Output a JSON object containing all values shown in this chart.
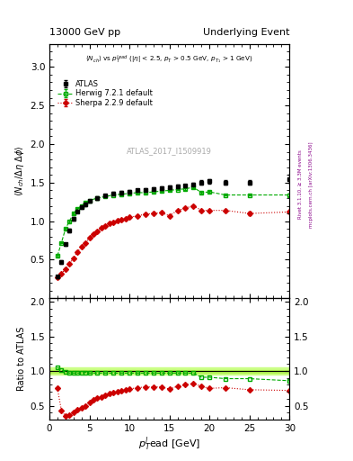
{
  "title_left": "13000 GeV pp",
  "title_right": "Underlying Event",
  "plot_label": "ATLAS_2017_I1509919",
  "right_label1": "Rivet 3.1.10, ≥ 3.3M events",
  "right_label2": "mcplots.cern.ch [arXiv:1306.3436]",
  "atlas_x": [
    1.0,
    1.5,
    2.0,
    2.5,
    3.0,
    3.5,
    4.0,
    4.5,
    5.0,
    6.0,
    7.0,
    8.0,
    9.0,
    10.0,
    11.0,
    12.0,
    13.0,
    14.0,
    15.0,
    16.0,
    17.0,
    18.0,
    19.0,
    20.0,
    22.0,
    25.0,
    30.0
  ],
  "atlas_y": [
    0.28,
    0.47,
    0.7,
    0.88,
    1.03,
    1.13,
    1.18,
    1.22,
    1.26,
    1.3,
    1.33,
    1.36,
    1.37,
    1.38,
    1.4,
    1.41,
    1.42,
    1.43,
    1.44,
    1.45,
    1.46,
    1.48,
    1.5,
    1.52,
    1.5,
    1.5,
    1.55
  ],
  "atlas_yerr": [
    0.02,
    0.02,
    0.02,
    0.02,
    0.02,
    0.02,
    0.02,
    0.02,
    0.02,
    0.02,
    0.02,
    0.02,
    0.02,
    0.02,
    0.02,
    0.02,
    0.02,
    0.02,
    0.02,
    0.02,
    0.02,
    0.02,
    0.03,
    0.03,
    0.03,
    0.03,
    0.05
  ],
  "herwig_x": [
    1.0,
    1.5,
    2.0,
    2.5,
    3.0,
    3.5,
    4.0,
    4.5,
    5.0,
    6.0,
    7.0,
    8.0,
    9.0,
    10.0,
    11.0,
    12.0,
    13.0,
    14.0,
    15.0,
    16.0,
    17.0,
    18.0,
    19.0,
    20.0,
    22.0,
    25.0,
    30.0
  ],
  "herwig_y": [
    0.55,
    0.72,
    0.9,
    1.0,
    1.1,
    1.16,
    1.2,
    1.24,
    1.27,
    1.3,
    1.32,
    1.34,
    1.35,
    1.36,
    1.37,
    1.37,
    1.38,
    1.39,
    1.4,
    1.41,
    1.42,
    1.44,
    1.37,
    1.38,
    1.34,
    1.34,
    1.34
  ],
  "herwig_yerr": [
    0.01,
    0.01,
    0.01,
    0.01,
    0.01,
    0.01,
    0.01,
    0.01,
    0.01,
    0.01,
    0.01,
    0.01,
    0.01,
    0.01,
    0.01,
    0.01,
    0.01,
    0.01,
    0.01,
    0.01,
    0.01,
    0.01,
    0.01,
    0.01,
    0.01,
    0.01,
    0.02
  ],
  "sherpa_x": [
    1.0,
    1.5,
    2.0,
    2.5,
    3.0,
    3.5,
    4.0,
    4.5,
    5.0,
    5.5,
    6.0,
    6.5,
    7.0,
    7.5,
    8.0,
    8.5,
    9.0,
    9.5,
    10.0,
    11.0,
    12.0,
    13.0,
    14.0,
    15.0,
    16.0,
    17.0,
    18.0,
    19.0,
    20.0,
    22.0,
    25.0,
    30.0
  ],
  "sherpa_y": [
    0.27,
    0.32,
    0.38,
    0.45,
    0.52,
    0.6,
    0.67,
    0.72,
    0.78,
    0.83,
    0.87,
    0.91,
    0.94,
    0.97,
    0.99,
    1.01,
    1.02,
    1.03,
    1.05,
    1.07,
    1.09,
    1.1,
    1.11,
    1.07,
    1.14,
    1.17,
    1.2,
    1.14,
    1.14,
    1.14,
    1.1,
    1.12
  ],
  "sherpa_yerr": [
    0.01,
    0.01,
    0.01,
    0.01,
    0.01,
    0.01,
    0.01,
    0.01,
    0.01,
    0.01,
    0.01,
    0.01,
    0.01,
    0.01,
    0.01,
    0.01,
    0.01,
    0.01,
    0.01,
    0.01,
    0.01,
    0.01,
    0.01,
    0.01,
    0.01,
    0.01,
    0.01,
    0.01,
    0.01,
    0.01,
    0.02,
    0.02
  ],
  "herwig_ratio_y": [
    1.05,
    1.02,
    0.99,
    0.97,
    0.97,
    0.97,
    0.97,
    0.98,
    0.97,
    0.97,
    0.97,
    0.97,
    0.97,
    0.97,
    0.97,
    0.97,
    0.97,
    0.97,
    0.97,
    0.97,
    0.97,
    0.97,
    0.91,
    0.91,
    0.89,
    0.89,
    0.86
  ],
  "sherpa_ratio_y": [
    0.75,
    0.43,
    0.35,
    0.37,
    0.4,
    0.44,
    0.47,
    0.5,
    0.55,
    0.58,
    0.61,
    0.63,
    0.65,
    0.67,
    0.69,
    0.7,
    0.72,
    0.73,
    0.74,
    0.76,
    0.77,
    0.77,
    0.77,
    0.74,
    0.78,
    0.8,
    0.82,
    0.78,
    0.75,
    0.76,
    0.73,
    0.72
  ],
  "atlas_color": "black",
  "herwig_color": "#00aa00",
  "sherpa_color": "#cc0000",
  "xlim": [
    0,
    30
  ],
  "ylim_main": [
    0,
    3.3
  ],
  "ylim_ratio": [
    0.3,
    2.05
  ],
  "yticks_main": [
    0.5,
    1.0,
    1.5,
    2.0,
    2.5,
    3.0
  ],
  "yticks_ratio": [
    0.5,
    1.0,
    1.5,
    2.0
  ],
  "xticks": [
    0,
    5,
    10,
    15,
    20,
    25,
    30
  ]
}
